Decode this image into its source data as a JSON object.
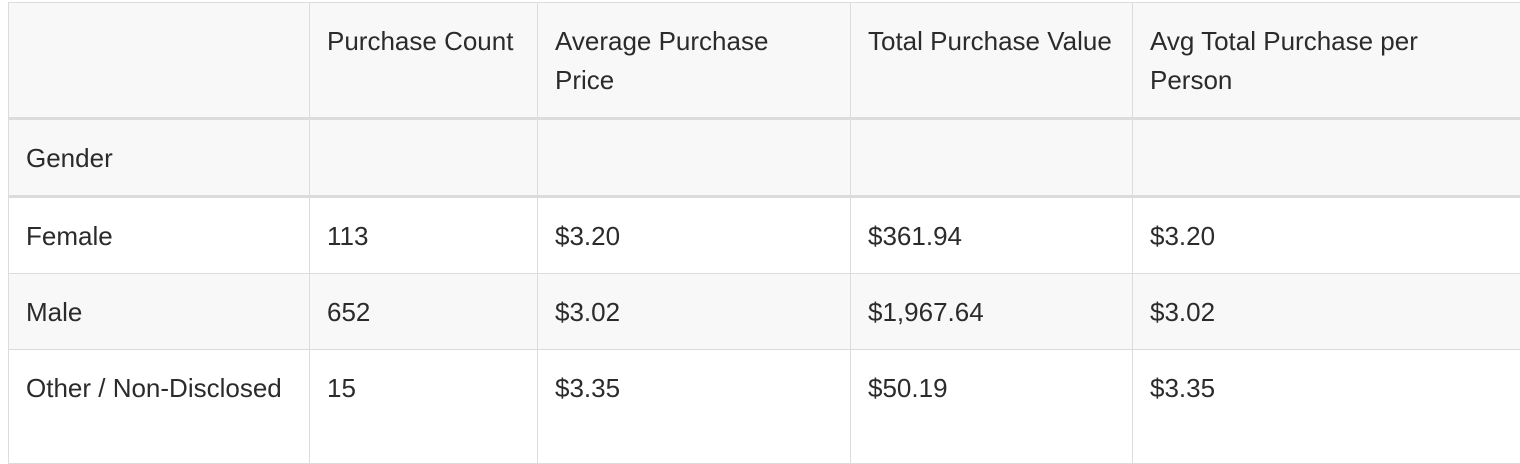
{
  "table": {
    "index_header": "",
    "columns": [
      "Purchase Count",
      "Average Purchase Price",
      "Total Purchase Value",
      "Avg Total Purchase per Person"
    ],
    "index_name": "Gender",
    "rows": [
      {
        "label": "Female",
        "values": [
          "113",
          "$3.20",
          "$361.94",
          "$3.20"
        ]
      },
      {
        "label": "Male",
        "values": [
          "652",
          "$3.02",
          "$1,967.64",
          "$3.02"
        ]
      },
      {
        "label": "Other / Non-Disclosed",
        "values": [
          "15",
          "$3.35",
          "$50.19",
          "$3.35"
        ]
      }
    ]
  }
}
